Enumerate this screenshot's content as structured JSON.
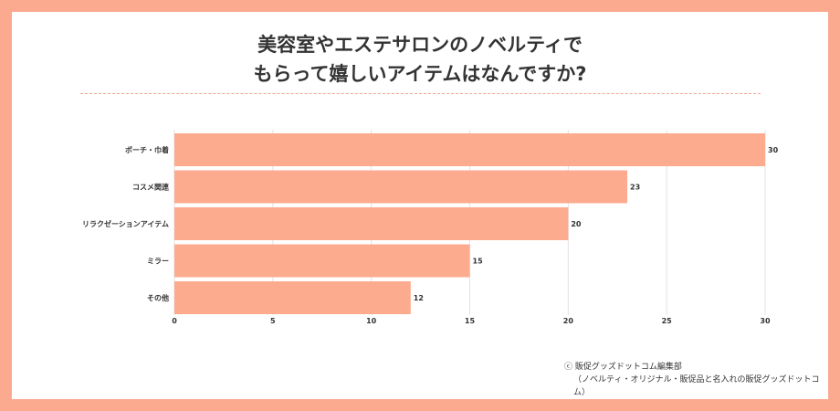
{
  "title_lines": [
    "美容室やエステサロンのノベルティで",
    "もらって嬉しいアイテムはなんですか?"
  ],
  "credit": {
    "line1": "ⓒ 販促グッズドットコム編集部",
    "line2": "（ノベルティ・オリジナル・販促品と名入れの販促グッズドットコム）"
  },
  "colors": {
    "frame": "#fba98f",
    "bar": "#fcab8f"
  },
  "chart_data": {
    "type": "bar",
    "orientation": "horizontal",
    "categories": [
      "ポーチ・巾着",
      "コスメ関連",
      "リラクゼーションアイテム",
      "ミラー",
      "その他"
    ],
    "values": [
      30,
      23,
      20,
      15,
      12
    ],
    "xlim": [
      0,
      30
    ],
    "xticks": [
      0,
      5,
      10,
      15,
      20,
      25,
      30
    ],
    "grid": true,
    "data_labels": true
  }
}
